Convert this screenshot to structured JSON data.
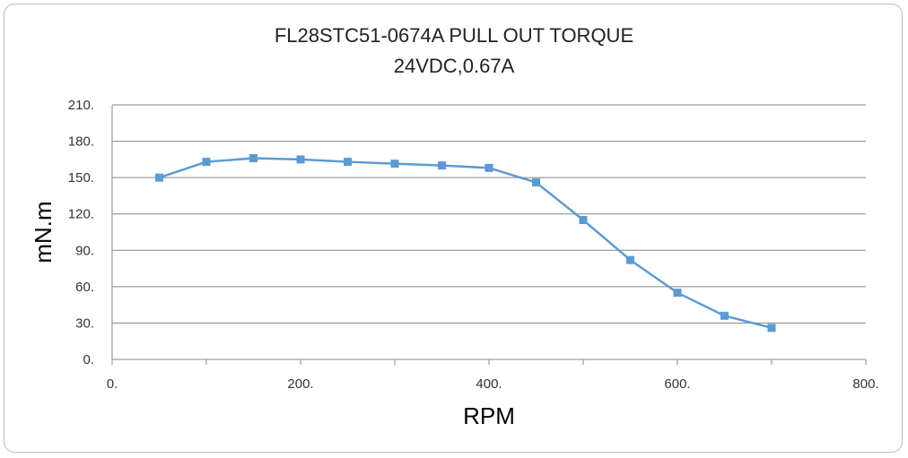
{
  "chart_data": {
    "type": "line",
    "title": "FL28STC51-0674A PULL OUT TORQUE",
    "subtitle": "24VDC,0.67A",
    "xlabel": "RPM",
    "ylabel": "mN.m",
    "xlim": [
      0,
      800
    ],
    "ylim": [
      0,
      210
    ],
    "x_ticks": [
      0,
      200,
      400,
      600,
      800
    ],
    "x_tick_labels": [
      "0.",
      "200.",
      "400.",
      "600.",
      "800."
    ],
    "y_ticks": [
      0,
      30,
      60,
      90,
      120,
      150,
      180,
      210
    ],
    "y_tick_labels": [
      "0.",
      "30.",
      "60.",
      "90.",
      "120.",
      "150.",
      "180.",
      "210."
    ],
    "grid": "horizontal",
    "legend": "none",
    "series": [
      {
        "color": "#5b9bd5",
        "marker": "square",
        "x": [
          50,
          100,
          150,
          200,
          250,
          300,
          350,
          400,
          450,
          500,
          550,
          600,
          650,
          700
        ],
        "y": [
          150,
          163,
          166,
          165,
          163,
          161.5,
          160,
          158,
          146,
          115,
          82,
          55,
          36,
          26
        ]
      }
    ]
  }
}
